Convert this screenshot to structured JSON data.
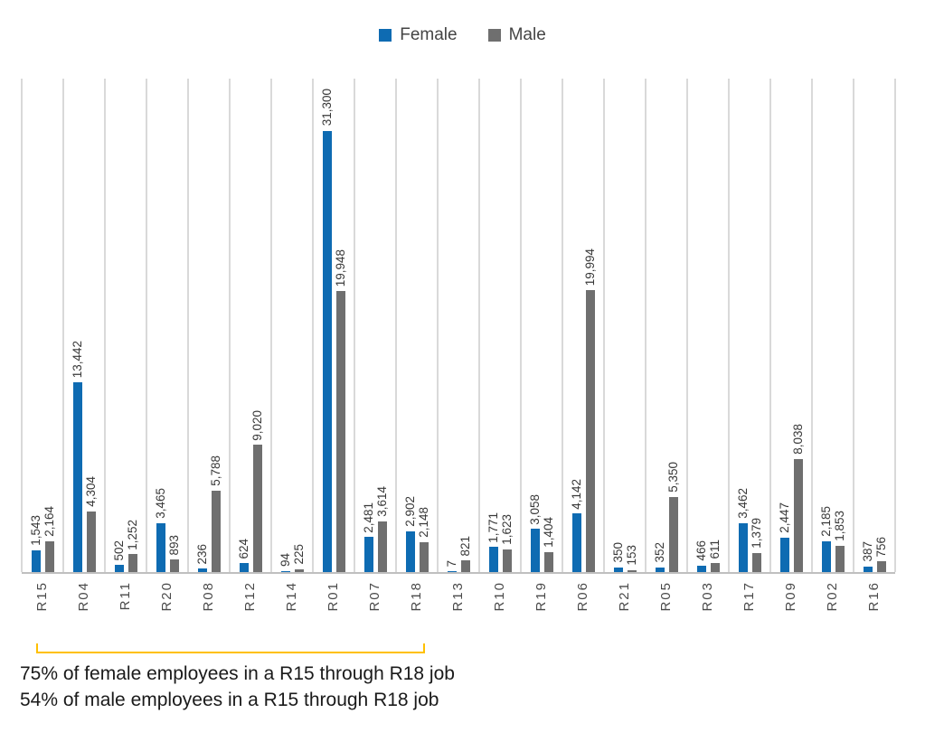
{
  "legend": [
    {
      "label": "Female",
      "color": "#0e6bb2"
    },
    {
      "label": "Male",
      "color": "#6f6f6f"
    }
  ],
  "chart_data": {
    "type": "bar",
    "title": "",
    "xlabel": "",
    "ylabel": "",
    "categories": [
      "R15",
      "R04",
      "R11",
      "R20",
      "R08",
      "R12",
      "R14",
      "R01",
      "R07",
      "R18",
      "R13",
      "R10",
      "R19",
      "R06",
      "R21",
      "R05",
      "R03",
      "R17",
      "R09",
      "R02",
      "R16"
    ],
    "series": [
      {
        "name": "Female",
        "color": "#0e6bb2",
        "values": [
          1543,
          13442,
          502,
          3465,
          236,
          624,
          94,
          31300,
          2481,
          2902,
          7,
          1771,
          3058,
          4142,
          350,
          352,
          466,
          3462,
          2447,
          2185,
          387
        ]
      },
      {
        "name": "Male",
        "color": "#6f6f6f",
        "values": [
          2164,
          4304,
          1252,
          893,
          5788,
          9020,
          225,
          19948,
          3614,
          2148,
          821,
          1623,
          1404,
          19994,
          153,
          5350,
          611,
          1379,
          8038,
          1853,
          756
        ]
      }
    ],
    "ylim": [
      0,
      35000
    ],
    "grid": "vertical category separators only, light gray",
    "y_axis_labels": "none (values shown as rotated data labels above each bar)",
    "value_label_style": "rotated 90deg, thousands separator",
    "category_label_style": "rotated 90deg below axis",
    "legend_position": "top-center"
  },
  "annotation": {
    "bracket_color": "#ffc000",
    "bracket_spans": "categories R15 through R18",
    "lines": [
      "75% of female employees in a R15 through R18 job",
      "54% of male employees in a R15 through R18 job"
    ]
  }
}
